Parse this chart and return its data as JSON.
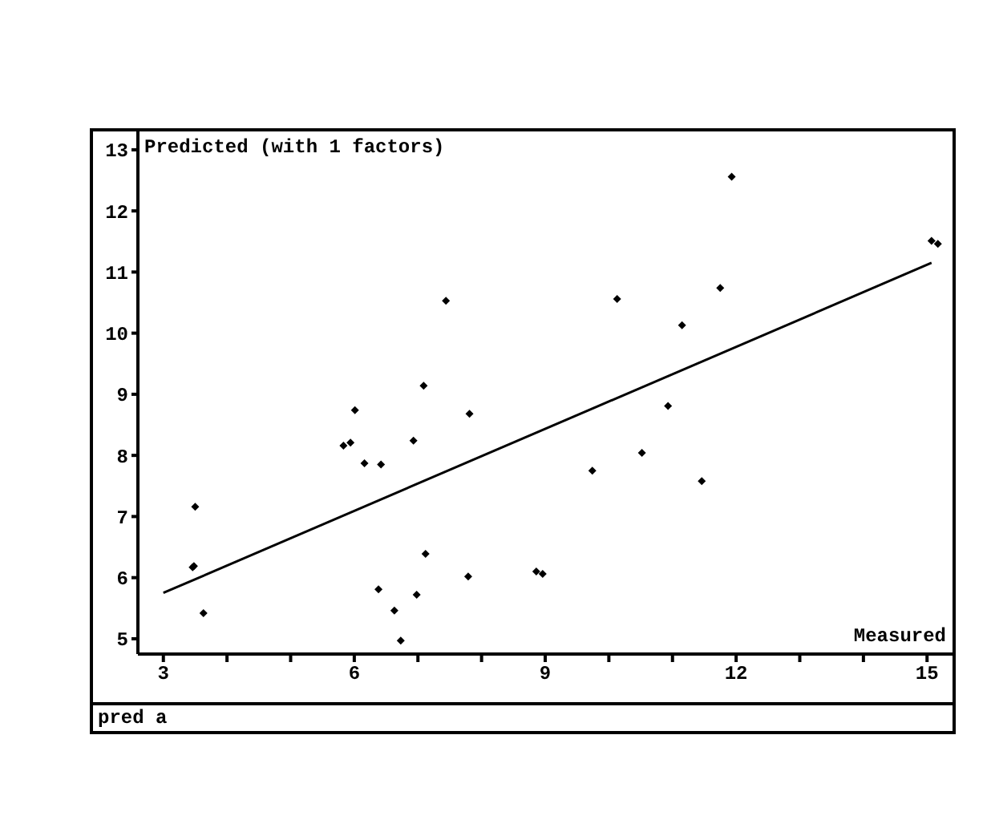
{
  "chart_data": {
    "type": "scatter",
    "ylabel": "Predicted (with 1 factors)",
    "xlabel": "Measured",
    "annotations": [
      "pred a"
    ],
    "xlim": [
      2.6,
      15.4
    ],
    "ylim": [
      4.75,
      13.3
    ],
    "xticks": [
      3,
      {
        "value": 4,
        "label": null
      },
      {
        "value": 5,
        "label": null
      },
      6,
      {
        "value": 7,
        "label": null
      },
      {
        "value": 8,
        "label": null
      },
      9,
      {
        "value": 10,
        "label": null
      },
      {
        "value": 11,
        "label": null
      },
      12,
      {
        "value": 13,
        "label": null
      },
      {
        "value": 14,
        "label": null
      },
      15
    ],
    "yticks": [
      5,
      6,
      7,
      8,
      9,
      10,
      11,
      12,
      13
    ],
    "marker": "diamond",
    "series": [
      {
        "color": "#000000",
        "x": [
          3.5,
          3.46,
          3.48,
          3.63,
          5.83,
          5.94,
          6.01,
          6.16,
          6.42,
          6.93,
          7.09,
          7.44,
          7.81,
          7.12,
          6.38,
          6.63,
          6.98,
          6.73,
          7.79,
          8.86,
          8.96,
          9.74,
          10.13,
          10.52,
          10.93,
          11.15,
          11.46,
          11.75,
          11.93,
          15.07,
          15.17
        ],
        "values": [
          7.16,
          6.17,
          6.19,
          5.42,
          8.16,
          8.21,
          8.74,
          7.87,
          7.85,
          8.24,
          9.14,
          10.53,
          8.68,
          6.39,
          5.81,
          5.46,
          5.72,
          4.97,
          6.02,
          6.1,
          6.06,
          7.75,
          10.56,
          8.04,
          8.81,
          10.13,
          7.58,
          10.74,
          12.56,
          11.51,
          11.46
        ]
      },
      {
        "type": "line",
        "color": "#000000",
        "marker": "none",
        "line_style": "solid",
        "x": [
          3,
          15.07
        ],
        "values": [
          5.75,
          11.15
        ]
      }
    ]
  }
}
